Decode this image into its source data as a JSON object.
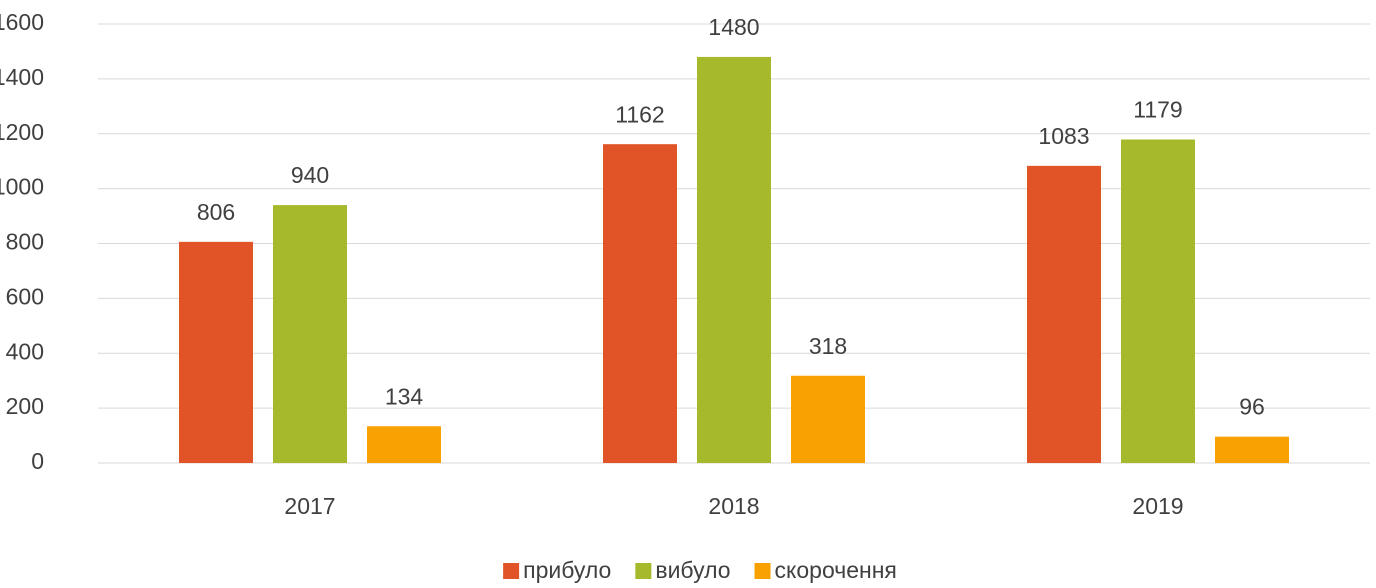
{
  "chart_data": {
    "type": "bar",
    "categories": [
      "2017",
      "2018",
      "2019"
    ],
    "series": [
      {
        "name": "прибуло",
        "color": "#e05428",
        "values": [
          806,
          1162,
          1083
        ]
      },
      {
        "name": "вибуло",
        "color": "#a5b92a",
        "values": [
          940,
          1480,
          1179
        ]
      },
      {
        "name": "скорочення",
        "color": "#f9a100",
        "values": [
          134,
          318,
          96
        ]
      }
    ],
    "ylim": [
      0,
      1600
    ],
    "yticks": [
      0,
      200,
      400,
      600,
      800,
      1000,
      1200,
      1400,
      1600
    ],
    "grid": true,
    "legend": "bottom"
  }
}
